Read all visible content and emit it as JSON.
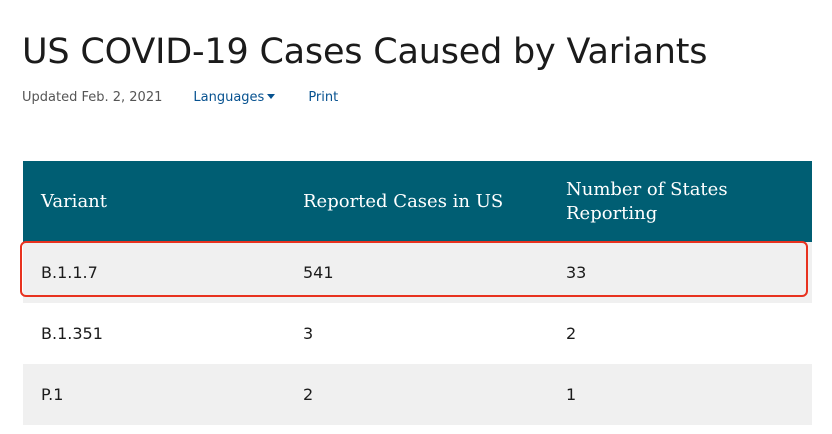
{
  "page": {
    "title": "US COVID-19 Cases Caused by Variants",
    "updated": "Updated Feb. 2, 2021",
    "languages_label": "Languages",
    "print_label": "Print"
  },
  "table": {
    "headers": [
      "Variant",
      "Reported Cases in US",
      "Number of States Reporting"
    ],
    "rows": [
      [
        "B.1.1.7",
        "541",
        "33"
      ],
      [
        "B.1.351",
        "3",
        "2"
      ],
      [
        "P.1",
        "2",
        "1"
      ]
    ]
  },
  "colors": {
    "header_bg": "#005e73",
    "link": "#075290",
    "highlight_border": "#e8321f",
    "stripe": "#f0f0f0"
  }
}
